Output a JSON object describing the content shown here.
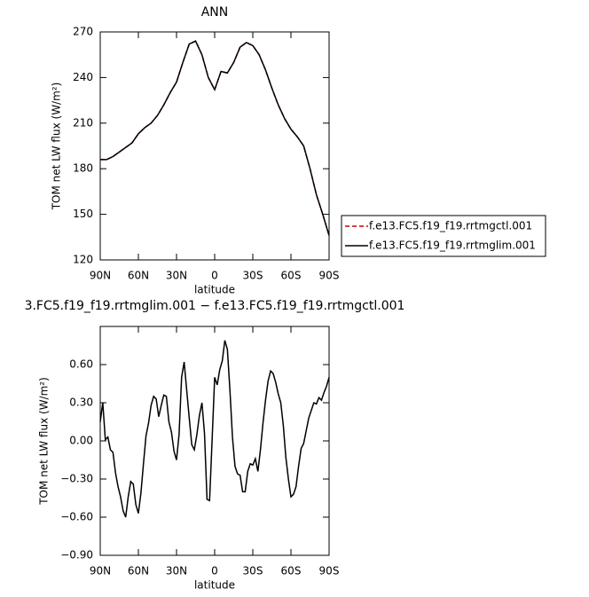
{
  "chart_data": [
    {
      "type": "line",
      "title": "ANN",
      "xlabel": "latitude",
      "ylabel": "TOM net LW flux (W/m²)",
      "x": [
        90,
        85,
        80,
        75,
        70,
        65,
        60,
        55,
        50,
        45,
        40,
        35,
        30,
        25,
        20,
        15,
        10,
        5,
        0,
        -5,
        -10,
        -15,
        -20,
        -25,
        -30,
        -35,
        -40,
        -45,
        -50,
        -55,
        -60,
        -65,
        -70,
        -75,
        -80,
        -85,
        -90
      ],
      "series": [
        {
          "name": "f.e13.FC5.f19_f19.rrtmgctl.001",
          "color": "#cc0000",
          "linestyle": "dashed",
          "values": [
            186,
            186,
            188,
            191,
            194,
            197,
            203,
            207,
            210,
            215,
            222,
            230,
            237,
            250,
            262,
            264,
            255,
            240,
            232,
            244,
            243,
            250,
            260,
            263,
            261,
            255,
            245,
            233,
            222,
            213,
            206,
            201,
            195,
            180,
            163,
            150,
            136
          ]
        },
        {
          "name": "f.e13.FC5.f19_f19.rrtmglim.001",
          "color": "#000000",
          "linestyle": "solid",
          "values": [
            186,
            186,
            188,
            191,
            194,
            197,
            203,
            207,
            210,
            215,
            222,
            230,
            237,
            250,
            262,
            264,
            255,
            240,
            232,
            244,
            243,
            250,
            260,
            263,
            261,
            255,
            245,
            233,
            222,
            213,
            206,
            201,
            195,
            180,
            163,
            150,
            136
          ]
        }
      ],
      "xlim": [
        90,
        -90
      ],
      "xticks": [
        {
          "value": 90,
          "label": "90N"
        },
        {
          "value": 60,
          "label": "60N"
        },
        {
          "value": 30,
          "label": "30N"
        },
        0,
        {
          "value": -30,
          "label": "30S"
        },
        {
          "value": -60,
          "label": "60S"
        },
        {
          "value": -90,
          "label": "90S"
        }
      ],
      "ylim": [
        120,
        270
      ],
      "yticks": [
        120,
        150,
        180,
        210,
        240,
        270
      ],
      "legend": "right"
    },
    {
      "type": "line",
      "title": "3.FC5.f19_f19.rrtmglim.001 − f.e13.FC5.f19_f19.rrtmgctl.001",
      "xlabel": "latitude",
      "ylabel": "TOM net LW flux (W/m²)",
      "x": [
        90,
        88,
        86,
        84,
        82,
        80,
        78,
        76,
        74,
        72,
        70,
        68,
        66,
        64,
        62,
        60,
        58,
        56,
        54,
        52,
        50,
        48,
        46,
        44,
        42,
        40,
        38,
        36,
        34,
        32,
        30,
        28,
        26,
        24,
        22,
        20,
        18,
        16,
        14,
        12,
        10,
        8,
        6,
        4,
        2,
        0,
        -2,
        -4,
        -6,
        -8,
        -10,
        -12,
        -14,
        -16,
        -18,
        -20,
        -22,
        -24,
        -26,
        -28,
        -30,
        -32,
        -34,
        -36,
        -38,
        -40,
        -42,
        -44,
        -46,
        -48,
        -50,
        -52,
        -54,
        -56,
        -58,
        -60,
        -62,
        -64,
        -66,
        -68,
        -70,
        -72,
        -74,
        -76,
        -78,
        -80,
        -82,
        -84,
        -86,
        -88,
        -90
      ],
      "series": [
        {
          "color": "#000000",
          "linestyle": "solid",
          "values": [
            0.15,
            0.3,
            0.01,
            0.03,
            -0.07,
            -0.09,
            -0.25,
            -0.36,
            -0.44,
            -0.55,
            -0.6,
            -0.44,
            -0.32,
            -0.34,
            -0.5,
            -0.57,
            -0.41,
            -0.18,
            0.04,
            0.14,
            0.28,
            0.35,
            0.33,
            0.19,
            0.28,
            0.36,
            0.35,
            0.15,
            0.07,
            -0.08,
            -0.15,
            0.05,
            0.5,
            0.62,
            0.4,
            0.18,
            -0.03,
            -0.07,
            0.05,
            0.2,
            0.3,
            0.06,
            -0.46,
            -0.47,
            0.01,
            0.5,
            0.44,
            0.56,
            0.63,
            0.79,
            0.72,
            0.4,
            0.03,
            -0.2,
            -0.26,
            -0.27,
            -0.4,
            -0.4,
            -0.24,
            -0.18,
            -0.19,
            -0.14,
            -0.24,
            -0.07,
            0.14,
            0.32,
            0.47,
            0.55,
            0.53,
            0.46,
            0.37,
            0.3,
            0.12,
            -0.13,
            -0.3,
            -0.44,
            -0.42,
            -0.36,
            -0.2,
            -0.06,
            -0.02,
            0.08,
            0.18,
            0.24,
            0.3,
            0.29,
            0.34,
            0.32,
            0.38,
            0.43,
            0.5
          ]
        }
      ],
      "xlim": [
        90,
        -90
      ],
      "xticks": [
        {
          "value": 90,
          "label": "90N"
        },
        {
          "value": 60,
          "label": "60N"
        },
        {
          "value": 30,
          "label": "30N"
        },
        0,
        {
          "value": -30,
          "label": "30S"
        },
        {
          "value": -60,
          "label": "60S"
        },
        {
          "value": -90,
          "label": "90S"
        }
      ],
      "ylim": [
        -0.9,
        0.9
      ],
      "yticks": [
        {
          "value": -0.9,
          "label": "−0.90"
        },
        {
          "value": -0.6,
          "label": "−0.60"
        },
        {
          "value": -0.3,
          "label": "−0.30"
        },
        {
          "value": 0,
          "label": "0.00"
        },
        {
          "value": 0.3,
          "label": "0.30"
        },
        {
          "value": 0.6,
          "label": "0.60"
        }
      ]
    }
  ]
}
